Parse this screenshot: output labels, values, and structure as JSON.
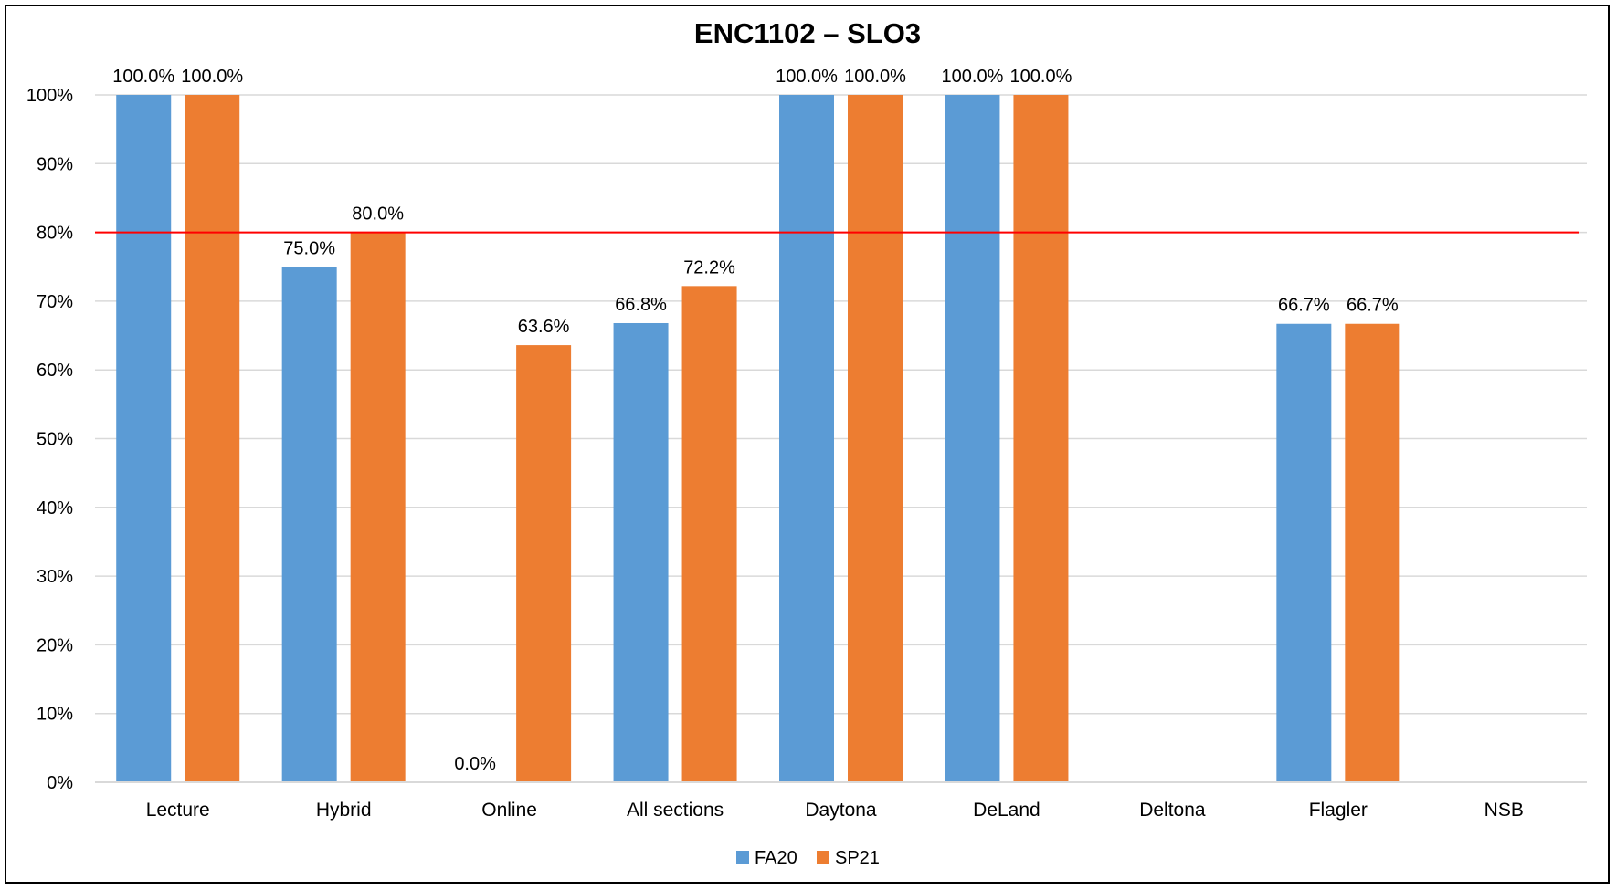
{
  "chart_data": {
    "type": "bar",
    "title": "ENC1102 – SLO3",
    "xlabel": "",
    "ylabel": "",
    "categories": [
      "Lecture",
      "Hybrid",
      "Online",
      "All sections",
      "Daytona",
      "DeLand",
      "Deltona",
      "Flagler",
      "NSB"
    ],
    "series": [
      {
        "name": "FA20",
        "color": "#5B9BD5",
        "values": [
          1.0,
          0.75,
          0.0,
          0.668,
          1.0,
          1.0,
          null,
          0.667,
          null
        ],
        "labels": [
          "100.0%",
          "75.0%",
          "0.0%",
          "66.8%",
          "100.0%",
          "100.0%",
          null,
          "66.7%",
          null
        ]
      },
      {
        "name": "SP21",
        "color": "#ED7D31",
        "values": [
          1.0,
          0.8,
          0.636,
          0.722,
          1.0,
          1.0,
          null,
          0.667,
          null
        ],
        "labels": [
          "100.0%",
          "80.0%",
          "63.6%",
          "72.2%",
          "100.0%",
          "100.0%",
          null,
          "66.7%",
          null
        ]
      }
    ],
    "ylim": [
      0,
      1
    ],
    "yticks": [
      0,
      0.1,
      0.2,
      0.3,
      0.4,
      0.5,
      0.6,
      0.7,
      0.8,
      0.9,
      1.0
    ],
    "ytick_labels": [
      "0%",
      "10%",
      "20%",
      "30%",
      "40%",
      "50%",
      "60%",
      "70%",
      "80%",
      "90%",
      "100%"
    ],
    "target_line": {
      "value": 0.8,
      "color": "#FF0000"
    },
    "grid": true,
    "gridline_color": "#D9D9D9",
    "legend_position": "bottom"
  }
}
